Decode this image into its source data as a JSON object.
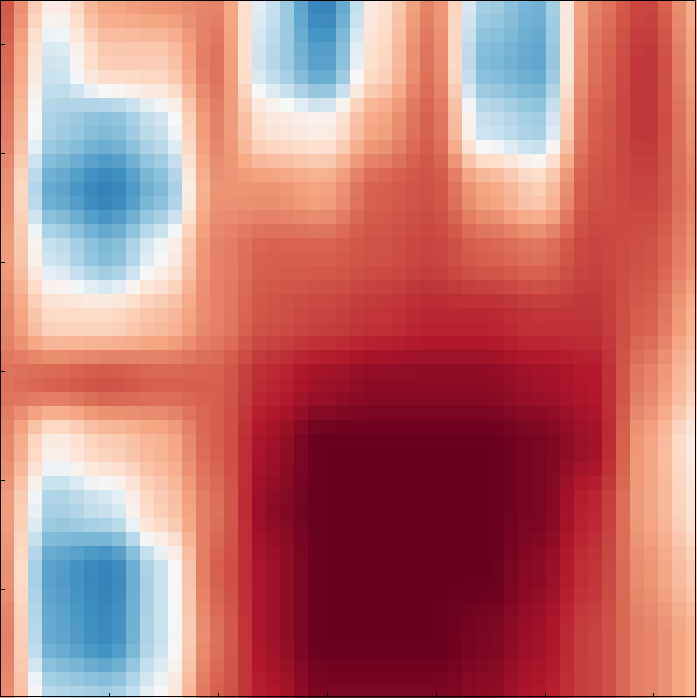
{
  "chart_data": {
    "type": "heatmap",
    "colormap": "RdBu_r",
    "title": "",
    "xlabel": "",
    "ylabel": "",
    "x_ticks_visible": false,
    "y_ticks_visible": false,
    "value_range": [
      -1,
      1
    ],
    "colors": {
      "low": "#053061",
      "mid": "#f7f7f7",
      "high": "#67001f",
      "frame": "#000000"
    },
    "grid_rows": 8,
    "grid_cols": 8,
    "values": [
      [
        0.6,
        0.05,
        0.4,
        0.45,
        -0.5,
        0.4,
        0.7,
        0.05
      ],
      [
        0.55,
        -0.1,
        0.15,
        0.55,
        -0.2,
        0.55,
        0.75,
        -0.2
      ],
      [
        0.5,
        -0.4,
        -0.55,
        0.5,
        0.1,
        0.6,
        0.7,
        0.0
      ],
      [
        0.5,
        0.15,
        0.1,
        0.35,
        0.4,
        0.7,
        0.7,
        0.25
      ],
      [
        0.45,
        0.55,
        0.6,
        0.55,
        0.6,
        0.85,
        0.9,
        0.55
      ],
      [
        0.4,
        0.05,
        0.3,
        0.5,
        0.95,
        1.0,
        1.0,
        0.7
      ],
      [
        0.55,
        -0.3,
        0.05,
        0.45,
        0.95,
        1.0,
        1.0,
        0.75
      ],
      [
        0.5,
        -0.55,
        -0.1,
        0.5,
        0.9,
        1.0,
        0.95,
        0.8
      ]
    ],
    "raster_columns": [
      [
        0.6,
        0.55,
        0.5,
        0.45,
        0.4,
        0.45,
        0.5,
        0.45,
        0.4,
        0.45,
        0.5,
        0.45
      ],
      [
        0.05,
        -0.1,
        -0.2,
        -0.4,
        -0.1,
        0.15,
        0.55,
        0.05,
        -0.2,
        -0.45,
        -0.4,
        -0.15
      ],
      [
        0.35,
        0.2,
        -0.3,
        -0.6,
        -0.3,
        0.15,
        0.6,
        0.2,
        -0.1,
        -0.6,
        -0.55,
        -0.2
      ],
      [
        0.4,
        0.2,
        -0.1,
        -0.3,
        0.0,
        0.25,
        0.55,
        0.3,
        0.2,
        -0.1,
        -0.1,
        0.0
      ],
      [
        0.45,
        0.5,
        0.45,
        0.4,
        0.45,
        0.45,
        0.55,
        0.55,
        0.5,
        0.55,
        0.5,
        0.55
      ],
      [
        -0.1,
        -0.15,
        0.1,
        0.4,
        0.55,
        0.6,
        0.75,
        0.85,
        0.9,
        0.85,
        0.85,
        0.8
      ],
      [
        -0.6,
        -0.45,
        0.05,
        0.35,
        0.55,
        0.65,
        0.85,
        1.0,
        1.0,
        1.0,
        1.0,
        0.95
      ],
      [
        0.1,
        0.15,
        0.35,
        0.55,
        0.6,
        0.7,
        0.9,
        1.0,
        1.0,
        1.0,
        1.0,
        0.95
      ],
      [
        0.45,
        0.5,
        0.55,
        0.6,
        0.65,
        0.75,
        0.9,
        1.0,
        1.0,
        1.0,
        1.0,
        0.95
      ],
      [
        -0.2,
        -0.3,
        -0.1,
        0.35,
        0.55,
        0.75,
        0.9,
        1.0,
        1.0,
        1.0,
        0.95,
        0.9
      ],
      [
        -0.35,
        -0.4,
        -0.2,
        0.2,
        0.5,
        0.7,
        0.85,
        0.95,
        0.95,
        0.9,
        0.85,
        0.8
      ],
      [
        0.45,
        0.5,
        0.55,
        0.6,
        0.65,
        0.7,
        0.8,
        0.85,
        0.75,
        0.7,
        0.65,
        0.65
      ],
      [
        0.65,
        0.7,
        0.7,
        0.65,
        0.6,
        0.55,
        0.45,
        0.35,
        0.35,
        0.4,
        0.45,
        0.45
      ],
      [
        0.3,
        0.35,
        0.4,
        0.45,
        0.4,
        0.3,
        0.2,
        0.05,
        0.1,
        0.2,
        0.3,
        0.3
      ]
    ]
  }
}
